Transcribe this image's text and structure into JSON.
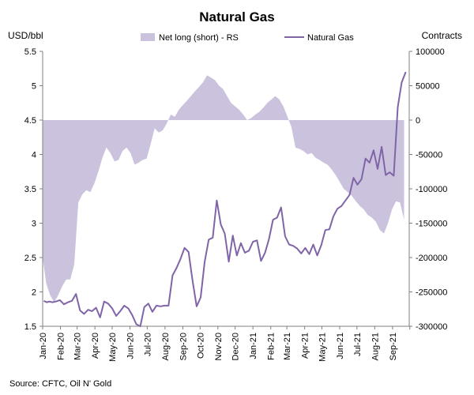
{
  "chart_data": {
    "type": "line",
    "title": "Natural Gas",
    "y_left_label": "USD/bbl",
    "y_right_label": "Contracts",
    "source": "Source: CFTC, Oil N' Gold",
    "y_left_range": [
      1.5,
      5.5
    ],
    "y_left_ticks": [
      "1.5",
      "2",
      "2.5",
      "3",
      "3.5",
      "4",
      "4.5",
      "5",
      "5.5"
    ],
    "y_right_range": [
      -300000,
      100000
    ],
    "y_right_ticks": [
      "-300000",
      "-250000",
      "-200000",
      "-150000",
      "-100000",
      "-50000",
      "0",
      "50000",
      "100000"
    ],
    "x_range": [
      "2020-01",
      "2021-09"
    ],
    "x_tick_labels": [
      "Jan-20",
      "Feb-20",
      "Mar-20",
      "Apr-20",
      "May-20",
      "Jun-20",
      "Jul-20",
      "Aug-20",
      "Sep-20",
      "Oct-20",
      "Nov-20",
      "Dec-20",
      "Jan-21",
      "Feb-21",
      "Mar-21",
      "Apr-21",
      "May-21",
      "Jun-21",
      "Jul-21",
      "Aug-21",
      "Sep-21"
    ],
    "legend_position": "top",
    "grid": false,
    "series": [
      {
        "name": "Net long (short) - RS",
        "type": "area",
        "axis": "right",
        "color": "#cbc3dd",
        "x": [
          "2020-01-01",
          "2020-01-07",
          "2020-01-14",
          "2020-01-21",
          "2020-01-28",
          "2020-02-04",
          "2020-02-11",
          "2020-02-18",
          "2020-02-25",
          "2020-03-03",
          "2020-03-10",
          "2020-03-17",
          "2020-03-24",
          "2020-03-31",
          "2020-04-07",
          "2020-04-14",
          "2020-04-21",
          "2020-04-28",
          "2020-05-05",
          "2020-05-12",
          "2020-05-19",
          "2020-05-26",
          "2020-06-02",
          "2020-06-09",
          "2020-06-16",
          "2020-06-23",
          "2020-06-30",
          "2020-07-07",
          "2020-07-14",
          "2020-07-21",
          "2020-07-28",
          "2020-08-04",
          "2020-08-11",
          "2020-08-18",
          "2020-08-25",
          "2020-09-01",
          "2020-09-08",
          "2020-09-15",
          "2020-09-22",
          "2020-09-29",
          "2020-10-06",
          "2020-10-13",
          "2020-10-20",
          "2020-10-27",
          "2020-11-03",
          "2020-11-10",
          "2020-11-17",
          "2020-11-24",
          "2020-12-01",
          "2020-12-08",
          "2020-12-15",
          "2020-12-22",
          "2020-12-29",
          "2021-01-05",
          "2021-01-12",
          "2021-01-19",
          "2021-01-26",
          "2021-02-02",
          "2021-02-09",
          "2021-02-16",
          "2021-02-23",
          "2021-03-02",
          "2021-03-09",
          "2021-03-16",
          "2021-03-23",
          "2021-03-30",
          "2021-04-06",
          "2021-04-13",
          "2021-04-20",
          "2021-04-27",
          "2021-05-04",
          "2021-05-11",
          "2021-05-18",
          "2021-05-25",
          "2021-06-01",
          "2021-06-08",
          "2021-06-15",
          "2021-06-22",
          "2021-06-29",
          "2021-07-06",
          "2021-07-13",
          "2021-07-20",
          "2021-07-27",
          "2021-08-03",
          "2021-08-10",
          "2021-08-17",
          "2021-08-24",
          "2021-08-31",
          "2021-09-07",
          "2021-09-14",
          "2021-09-21"
        ],
        "values": [
          -200000,
          -237000,
          -255000,
          -265000,
          -255000,
          -242000,
          -232000,
          -232000,
          -210000,
          -120000,
          -108000,
          -102000,
          -105000,
          -92000,
          -75000,
          -55000,
          -40000,
          -48000,
          -60000,
          -58000,
          -45000,
          -40000,
          -48000,
          -65000,
          -62000,
          -58000,
          -56000,
          -35000,
          -12000,
          -18000,
          -15000,
          -5000,
          8000,
          5000,
          15000,
          22000,
          28000,
          35000,
          42000,
          48000,
          55000,
          65000,
          62000,
          58000,
          50000,
          45000,
          35000,
          25000,
          20000,
          15000,
          8000,
          0,
          3000,
          8000,
          12000,
          18000,
          25000,
          30000,
          35000,
          30000,
          20000,
          5000,
          -10000,
          -40000,
          -42000,
          -45000,
          -50000,
          -48000,
          -55000,
          -58000,
          -62000,
          -65000,
          -72000,
          -80000,
          -90000,
          -100000,
          -105000,
          -110000,
          -118000,
          -125000,
          -130000,
          -138000,
          -142000,
          -148000,
          -160000,
          -165000,
          -150000,
          -130000,
          -118000,
          -120000,
          -145000
        ]
      },
      {
        "name": "Natural Gas",
        "type": "line",
        "axis": "left",
        "color": "#7f65a8",
        "x": [
          "2020-01-03",
          "2020-01-08",
          "2020-01-13",
          "2020-01-18",
          "2020-01-24",
          "2020-01-31",
          "2020-02-07",
          "2020-02-14",
          "2020-02-21",
          "2020-02-28",
          "2020-03-06",
          "2020-03-13",
          "2020-03-20",
          "2020-03-27",
          "2020-04-03",
          "2020-04-10",
          "2020-04-17",
          "2020-04-24",
          "2020-05-01",
          "2020-05-08",
          "2020-05-15",
          "2020-05-22",
          "2020-05-29",
          "2020-06-05",
          "2020-06-12",
          "2020-06-19",
          "2020-06-26",
          "2020-07-03",
          "2020-07-10",
          "2020-07-17",
          "2020-07-24",
          "2020-07-31",
          "2020-08-07",
          "2020-08-14",
          "2020-08-21",
          "2020-08-28",
          "2020-09-04",
          "2020-09-11",
          "2020-09-18",
          "2020-09-25",
          "2020-10-02",
          "2020-10-09",
          "2020-10-16",
          "2020-10-23",
          "2020-10-30",
          "2020-11-06",
          "2020-11-13",
          "2020-11-20",
          "2020-11-27",
          "2020-12-04",
          "2020-12-11",
          "2020-12-18",
          "2020-12-25",
          "2021-01-01",
          "2021-01-08",
          "2021-01-15",
          "2021-01-22",
          "2021-01-29",
          "2021-02-05",
          "2021-02-12",
          "2021-02-19",
          "2021-02-26",
          "2021-03-05",
          "2021-03-12",
          "2021-03-19",
          "2021-03-26",
          "2021-04-02",
          "2021-04-09",
          "2021-04-16",
          "2021-04-23",
          "2021-04-30",
          "2021-05-07",
          "2021-05-14",
          "2021-05-21",
          "2021-05-28",
          "2021-06-04",
          "2021-06-11",
          "2021-06-18",
          "2021-06-25",
          "2021-07-02",
          "2021-07-09",
          "2021-07-16",
          "2021-07-23",
          "2021-07-30",
          "2021-08-06",
          "2021-08-13",
          "2021-08-20",
          "2021-08-27",
          "2021-09-03",
          "2021-09-10",
          "2021-09-17",
          "2021-09-24"
        ],
        "values": [
          1.87,
          1.85,
          1.86,
          1.85,
          1.86,
          1.88,
          1.82,
          1.85,
          1.87,
          1.97,
          1.73,
          1.68,
          1.74,
          1.72,
          1.77,
          1.63,
          1.86,
          1.83,
          1.76,
          1.65,
          1.72,
          1.8,
          1.76,
          1.66,
          1.53,
          1.5,
          1.78,
          1.83,
          1.71,
          1.8,
          1.79,
          1.8,
          1.8,
          2.24,
          2.35,
          2.48,
          2.64,
          2.58,
          2.16,
          1.79,
          1.92,
          2.44,
          2.76,
          2.79,
          3.33,
          2.98,
          2.85,
          2.44,
          2.82,
          2.53,
          2.71,
          2.57,
          2.6,
          2.73,
          2.75,
          2.45,
          2.57,
          2.77,
          3.05,
          3.08,
          3.23,
          2.81,
          2.69,
          2.67,
          2.63,
          2.56,
          2.64,
          2.55,
          2.69,
          2.53,
          2.68,
          2.9,
          2.91,
          3.1,
          3.21,
          3.25,
          3.33,
          3.41,
          3.66,
          3.56,
          3.64,
          3.94,
          3.88,
          4.06,
          3.79,
          4.11,
          3.7,
          3.74,
          3.69,
          4.69,
          5.05,
          5.2
        ]
      }
    ]
  }
}
